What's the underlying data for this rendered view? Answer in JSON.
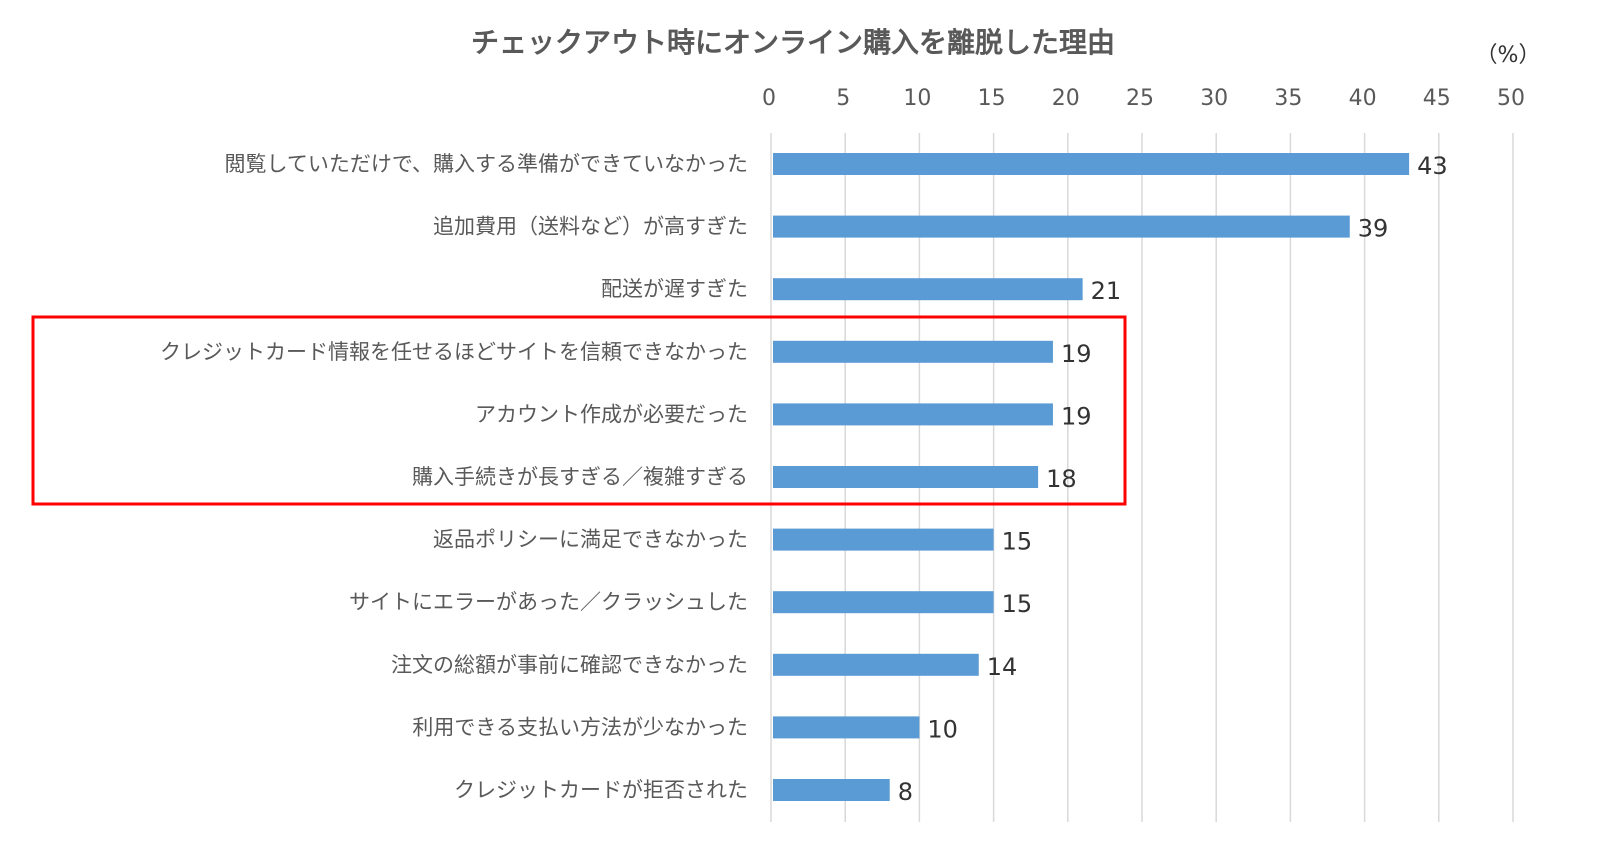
{
  "chart_data": {
    "type": "bar",
    "orientation": "horizontal",
    "title": "チェックアウト時にオンライン購入を離脱した理由",
    "unit_label": "（%）",
    "xlim": [
      0,
      50
    ],
    "ticks": [
      0,
      5,
      10,
      15,
      20,
      25,
      30,
      35,
      40,
      45,
      50
    ],
    "grid": true,
    "bar_color": "#5b9bd5",
    "highlight_color": "#ff0000",
    "highlighted_categories": [
      3,
      4,
      5
    ],
    "categories": [
      "閲覧していただけで、購入する準備ができていなかった",
      "追加費用（送料など）が高すぎた",
      "配送が遅すぎた",
      "クレジットカード情報を任せるほどサイトを信頼できなかった",
      "アカウント作成が必要だった",
      "購入手続きが長すぎる／複雑すぎる",
      "返品ポリシーに満足できなかった",
      "サイトにエラーがあった／クラッシュした",
      "注文の総額が事前に確認できなかった",
      "利用できる支払い方法が少なかった",
      "クレジットカードが拒否された"
    ],
    "values": [
      43,
      39,
      21,
      19,
      19,
      18,
      15,
      15,
      14,
      10,
      8
    ]
  }
}
